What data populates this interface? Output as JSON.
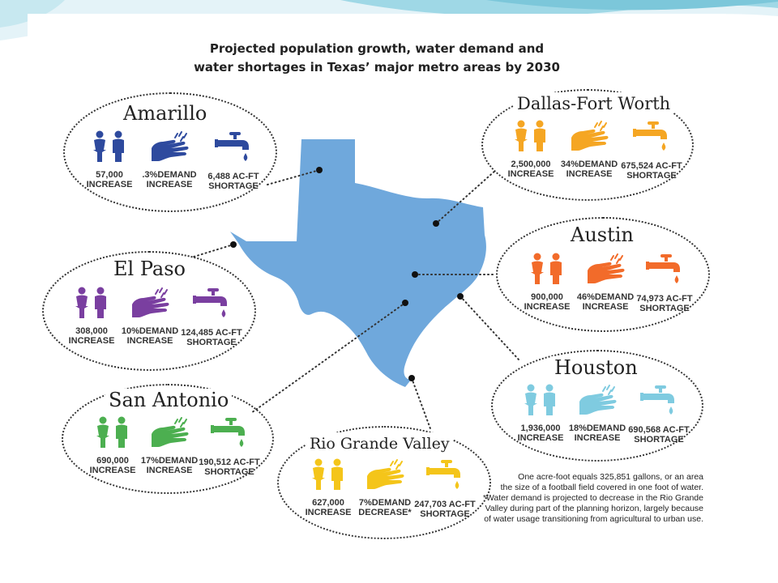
{
  "title_line1": "Projected population growth, water demand and",
  "title_line2": "water shortages in Texas’ major metro areas by 2030",
  "colors": {
    "texas": "#6fa8dc",
    "amarillo": "#2e4a9e",
    "dallas": "#f5a623",
    "austin": "#f26b2a",
    "el_paso": "#7a3fa0",
    "houston": "#7fcbe0",
    "san_antonio": "#4caf50",
    "rio_grande": "#f4c51a"
  },
  "regions": {
    "amarillo": {
      "name": "Amarillo",
      "pop": "57,000",
      "pop_label": "INCREASE",
      "demand": ".3%DEMAND",
      "demand_label": "INCREASE",
      "short": "6,488 AC-FT",
      "short_label": "SHORTAGE"
    },
    "dallas": {
      "name": "Dallas-Fort Worth",
      "pop": "2,500,000",
      "pop_label": "INCREASE",
      "demand": "34%DEMAND",
      "demand_label": "INCREASE",
      "short": "675,524 AC-FT",
      "short_label": "SHORTAGE"
    },
    "austin": {
      "name": "Austin",
      "pop": "900,000",
      "pop_label": "INCREASE",
      "demand": "46%DEMAND",
      "demand_label": "INCREASE",
      "short": "74,973 AC-FT",
      "short_label": "SHORTAGE"
    },
    "el_paso": {
      "name": "El Paso",
      "pop": "308,000",
      "pop_label": "INCREASE",
      "demand": "10%DEMAND",
      "demand_label": "INCREASE",
      "short": "124,485 AC-FT",
      "short_label": "SHORTAGE"
    },
    "houston": {
      "name": "Houston",
      "pop": "1,936,000",
      "pop_label": "INCREASE",
      "demand": "18%DEMAND",
      "demand_label": "INCREASE",
      "short": "690,568 AC-FT",
      "short_label": "SHORTAGE"
    },
    "san_antonio": {
      "name": "San Antonio",
      "pop": "690,000",
      "pop_label": "INCREASE",
      "demand": "17%DEMAND",
      "demand_label": "INCREASE",
      "short": "190,512 AC-FT",
      "short_label": "SHORTAGE"
    },
    "rio_grande": {
      "name": "Rio Grande Valley",
      "pop": "627,000",
      "pop_label": "INCREASE",
      "demand": "7%DEMAND",
      "demand_label": "DECREASE*",
      "short": "247,703 AC-FT",
      "short_label": "SHORTAGE"
    }
  },
  "footnote": [
    "One acre-foot equals 325,851 gallons, or an area",
    "the size of a football field covered in one foot of water.",
    "*Water demand is projected to decrease in the Rio Grande",
    "Valley during part of the planning horizon, largely because",
    "of water usage transitioning from agricultural to urban use."
  ]
}
